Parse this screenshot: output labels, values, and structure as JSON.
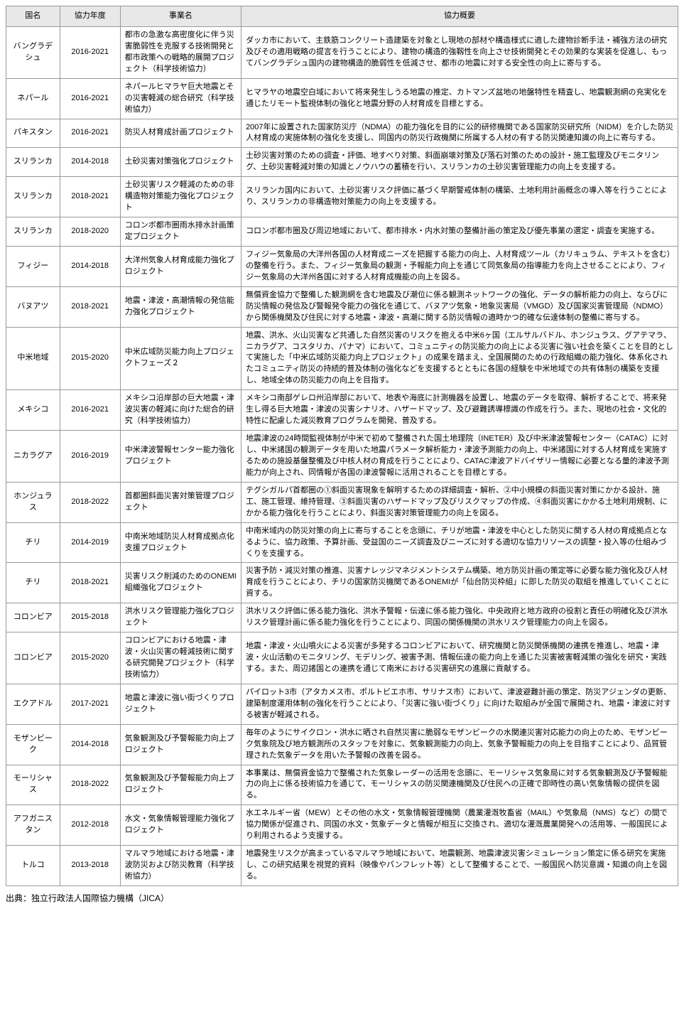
{
  "table": {
    "columns": [
      "国名",
      "協力年度",
      "事業名",
      "協力概要"
    ],
    "col_widths_pct": [
      8,
      9,
      18,
      65
    ],
    "header_bg": "#e8e8e8",
    "border_color": "#999999",
    "font_size_pt": 11,
    "rows": [
      {
        "country": "バングラデシュ",
        "year": "2016-2021",
        "project": "都市の急激な高密度化に伴う災害脆弱性を克服する技術開発と都市政策への戦略的展開プロジェクト（科学技術協力）",
        "desc": "ダッカ市において、主鉄筋コンクリート造建築を対象とし現地の部材や構造様式に適した建物診断手法・補強方法の研究及びその適用戦略の提言を行うことにより、建物の構造的強靱性を向上させ技術開発とその効果的な実装を促進し、もってバングラデシュ国内の建物構造的脆弱性を低減させ、都市の地震に対する安全性の向上に寄与する。"
      },
      {
        "country": "ネパール",
        "year": "2016-2021",
        "project": "ネパールヒマラヤ巨大地震とその災害軽減の総合研究（科学技術協力）",
        "desc": "ヒマラヤの地震空白域において将来発生しうる地震の推定、カトマンズ盆地の地盤特性を精査し、地震観測網の充実化を通じたリモート監視体制の強化と地震分野の人材育成を目標とする。"
      },
      {
        "country": "パキスタン",
        "year": "2016-2021",
        "project": "防災人材育成計画プロジェクト",
        "desc": "2007年に設置された国家防災庁（NDMA）の能力強化を目的に公的研修機関である国家防災研究所（NIDM）を介した防災人材育成の実施体制の強化を支援し、同国内の防災行政機関に所属する人材の有する防災関連知識の向上に寄与する。"
      },
      {
        "country": "スリランカ",
        "year": "2014-2018",
        "project": "土砂災害対策強化プロジェクト",
        "desc": "土砂災害対策のための調査・評価、地すべり対策、斜面崩壊対策及び落石対策のための設計・施工監理及びモニタリング、土砂災害軽減対策の知識とノウハウの蓄積を行い、スリランカの土砂災害管理能力の向上を支援する。"
      },
      {
        "country": "スリランカ",
        "year": "2018-2021",
        "project": "土砂災害リスク軽減のための非構造物対策能力強化プロジェクト",
        "desc": "スリランカ国内において、土砂災害リスク評価に基づく早期警戒体制の構築、土地利用計画概念の導入等を行うことにより、スリランカの非構造物対策能力の向上を支援する。"
      },
      {
        "country": "スリランカ",
        "year": "2018-2020",
        "project": "コロンボ都市圏雨水排水計画策定プロジェクト",
        "desc": "コロンボ都市圏及び周辺地域において、都市排水・内水対策の整備計画の策定及び優先事業の選定・調査を実施する。"
      },
      {
        "country": "フィジー",
        "year": "2014-2018",
        "project": "大洋州気象人材育成能力強化プロジェクト",
        "desc": "フィジー気象局の大洋州各国の人材育成ニーズを把握する能力の向上、人材育成ツール（カリキュラム、テキストを含む）の整備を行う。また、フィジー気象局の観測・予報能力向上を通じて同気象局の指導能力を向上させることにより、フィジー気象局の大洋州各国に対する人材育成機能の向上を図る。"
      },
      {
        "country": "バヌアツ",
        "year": "2018-2021",
        "project": "地震・津波・高潮情報の発信能力強化プロジェクト",
        "desc": "無償資金協力で整備した観測網を含む地震及び潮位に係る観測ネットワークの強化、データの解析能力の向上、ならびに防災情報の発信及び警報発令能力の強化を通じて、バヌアツ気象・地象災害局（VMGD）及び国家災害管理局（NDMO）から関係機関及び住民に対する地震・津波・高潮に関する防災情報の適時かつ的確な伝達体制の整備に寄与する。"
      },
      {
        "country": "中米地域",
        "year": "2015-2020",
        "project": "中米広域防災能力向上プロジェクトフェーズ２",
        "desc": "地震、洪水、火山災害など共通した自然災害のリスクを抱える中米6ヶ国（エルサルバドル、ホンジュラス、グアテマラ、ニカラグア、コスタリカ、パナマ）において、コミュニティの防災能力の向上による災害に強い社会を築くことを目的として実施した「中米広域防災能力向上プロジェクト」の成果を踏まえ、全国展開のための行政組織の能力強化、体系化されたコミュニティ防災の持続的普及体制の強化などを支援するとともに各国の経験を中米地域での共有体制の構築を支援し、地域全体の防災能力の向上を目指す。"
      },
      {
        "country": "メキシコ",
        "year": "2016-2021",
        "project": "メキシコ沿岸部の巨大地震・津波災害の軽減に向けた総合的研究（科学技術協力）",
        "desc": "メキシコ南部ゲレロ州沿岸部において、地表や海底に計測機器を設置し、地震のデータを取得、解析することで、将来発生し得る巨大地震・津波の災害シナリオ、ハザードマップ、及び避難誘導標識の作成を行う。また、現地の社会・文化的特性に配慮した減災教育プログラムを開発、普及する。"
      },
      {
        "country": "ニカラグア",
        "year": "2016-2019",
        "project": "中米津波警報センター能力強化プロジェクト",
        "desc": "地震津波の24時間監視体制が中米で初めて整備された国土地理院（INETER）及び中米津波警報センター（CATAC）に対し、中米諸国の観測データを用いた地震パラメータ解析能力・津波予測能力の向上、中米諸国に対する人材育成を実施するための施設基盤整備及び中核人材の育成を行うことにより、CATAC津波アドバイザリー情報に必要となる量的津波予測能力が向上され、同情報が各国の津波警報に活用されることを目標とする。"
      },
      {
        "country": "ホンジュラス",
        "year": "2018-2022",
        "project": "首都圏斜面災害対策管理プロジェクト",
        "desc": "テグシガルパ首都圏の①斜面災害現象を解明するための詳細調査・解析、②中小規模の斜面災害対策にかかる設計、施工、施工管理、維持管理、③斜面災害のハザードマップ及びリスクマップの作成、④斜面災害にかかる土地利用規制、にかかる能力強化を行うことにより、斜面災害対策管理能力の向上を図る。"
      },
      {
        "country": "チリ",
        "year": "2014-2019",
        "project": "中南米地域防災人材育成拠点化支援プロジェクト",
        "desc": "中南米域内の防災対策の向上に寄与することを念頭に、チリが地震・津波を中心とした防災に関する人材の育成拠点となるように、協力政策、予算計画、受益国のニーズ調査及びニーズに対する適切な協力リソースの調整・投入等の仕組みづくりを支援する。"
      },
      {
        "country": "チリ",
        "year": "2018-2021",
        "project": "災害リスク削減のためのONEMI組織強化プロジェクト",
        "desc": "災害予防・減災対策の推進、災害ナレッジマネジメントシステム構築、地方防災計画の策定等に必要な能力強化及び人材育成を行うことにより、チリの国家防災機関であるONEMIが「仙台防災枠組」に即した防災の取組を推進していくことに資する。"
      },
      {
        "country": "コロンビア",
        "year": "2015-2018",
        "project": "洪水リスク管理能力強化プロジェクト",
        "desc": "洪水リスク評価に係る能力強化、洪水予警報・伝達に係る能力強化、中央政府と地方政府の役割と責任の明確化及び洪水リスク管理計画に係る能力強化を行うことにより、同国の関係機関の洪水リスク管理能力の向上を図る。"
      },
      {
        "country": "コロンビア",
        "year": "2015-2020",
        "project": "コロンビアにおける地震・津波・火山災害の軽減技術に関する研究開発プロジェクト（科学技術協力）",
        "desc": "地震・津波・火山噴火による災害が多発するコロンビアにおいて、研究機関と防災関係機関の連携を推進し、地震・津波・火山活動のモニタリング、モデリング、被害予測、情報伝達の能力向上を通じた災害被害軽減策の強化を研究・実践する。また、周辺諸国との連携を通じて南米における災害研究の進展に貢献する。"
      },
      {
        "country": "エクアドル",
        "year": "2017-2021",
        "project": "地震と津波に強い街づくりプロジェクト",
        "desc": "パイロット3市（アタカメス市、ポルトビエホ市、サリナス市）において、津波避難計画の策定、防災アジェンダの更新、建築制度運用体制の強化を行うことにより、「災害に強い街づくり」に向けた取組みが全国で展開され、地震・津波に対する被害が軽減される。"
      },
      {
        "country": "モザンビーク",
        "year": "2014-2018",
        "project": "気象観測及び予警報能力向上プロジェクト",
        "desc": "毎年のようにサイクロン・洪水に晒され自然災害に脆弱なモザンビークの水関連災害対応能力の向上のため、モザンビーク気象院及び地方観測所のスタッフを対象に、気象観測能力の向上、気象予警報能力の向上を目指すことにより、品質管理された気象データを用いた予警報の改善を図る。"
      },
      {
        "country": "モーリシャス",
        "year": "2018-2022",
        "project": "気象観測及び予警報能力向上プロジェクト",
        "desc": "本事業は、無償資金協力で整備された気象レーダーの活用を念頭に、モーリシャス気象局に対する気象観測及び予警報能力の向上に係る技術協力を通じて、モーリシャスの防災関連機関及び住民への正確で即時性の高い気象情報の提供を図る。"
      },
      {
        "country": "アフガニスタン",
        "year": "2012-2018",
        "project": "水文・気象情報管理能力強化プロジェクト",
        "desc": "水エネルギー省（MEW）とその他の水文・気象情報管理機関（農業灌漑牧畜省（MAIL）や気象局（NMS）など）の間で協力関係が促進され、同国の水文・気象データと情報が相互に交換され、適切な灌漑農業開発への活用等、一般国民により利用されるよう支援する。"
      },
      {
        "country": "トルコ",
        "year": "2013-2018",
        "project": "マルマラ地域における地震・津波防災および防災教育（科学技術協力）",
        "desc": "地震発生リスクが高まっているマルマラ地域において、地震観測、地震津波災害シミュレーション策定に係る研究を実施し、この研究結果を視覚的資料（映像やパンフレット等）として整備することで、一般国民へ防災意識・知識の向上を図る。"
      }
    ]
  },
  "source": "出典：独立行政法人国際協力機構（JICA）"
}
